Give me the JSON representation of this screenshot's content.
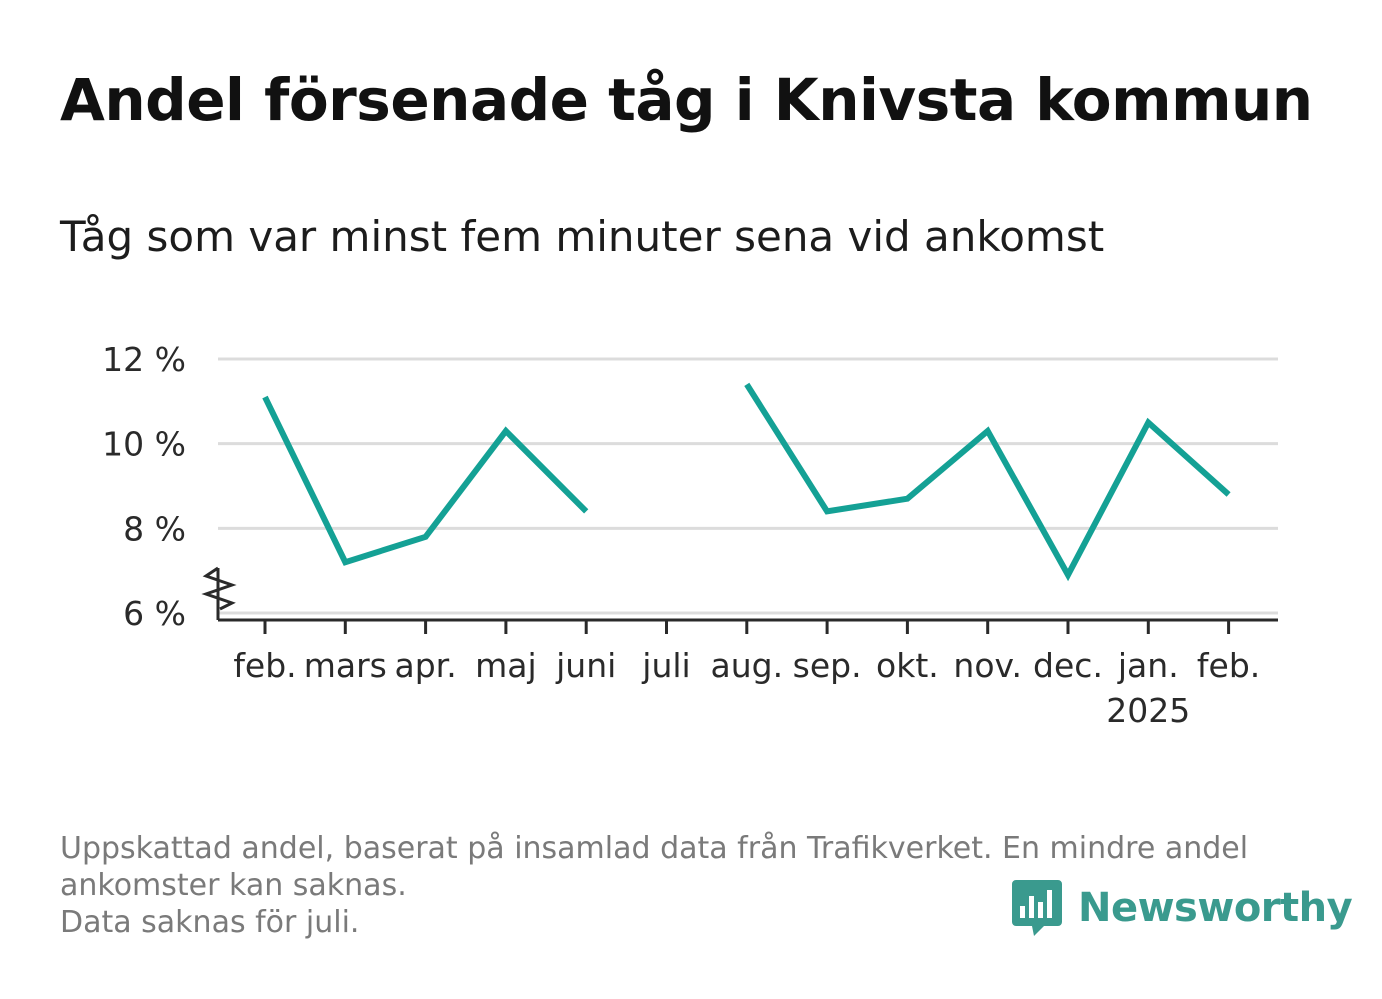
{
  "title": "Andel försenade tåg i Knivsta kommun",
  "subtitle": "Tåg som var minst fem minuter sena vid ankomst",
  "footer": {
    "line1": "Uppskattad andel, baserat på insamlad data från Trafikverket. En mindre andel",
    "line2": "ankomster kan saknas.",
    "line3": "Data saknas för juli."
  },
  "brand": {
    "name": "Newsworthy",
    "logo_icon": "bar-chart-speech-bubble-icon",
    "color": "#3a9a8e"
  },
  "chart_data": {
    "type": "line",
    "categories": [
      "feb.",
      "mars",
      "apr.",
      "maj",
      "juni",
      "juli",
      "aug.",
      "sep.",
      "okt.",
      "nov.",
      "dec.",
      "jan.",
      "feb."
    ],
    "year_label": {
      "under": "jan.",
      "text": "2025"
    },
    "series": [
      {
        "values": [
          11.1,
          7.2,
          7.8,
          10.3,
          8.4,
          null,
          11.4,
          8.4,
          8.7,
          10.3,
          6.9,
          10.5,
          8.8
        ],
        "color": "#14a195"
      }
    ],
    "y_ticks": [
      6,
      8,
      10,
      12
    ],
    "y_tick_labels": [
      "6 %",
      "8 %",
      "10 %",
      "12 %"
    ],
    "ylim": [
      6,
      12
    ],
    "y_axis_break": true,
    "grid": true,
    "xlabel": "",
    "ylabel": ""
  }
}
